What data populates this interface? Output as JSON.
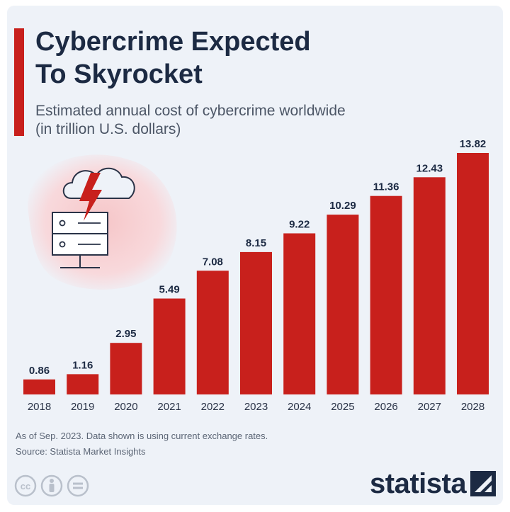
{
  "header": {
    "title_line1": "Cybercrime Expected",
    "title_line2": "To Skyrocket",
    "subtitle_line1": "Estimated annual cost of cybercrime worldwide",
    "subtitle_line2": "(in trillion U.S. dollars)"
  },
  "chart_data": {
    "type": "bar",
    "title": "Cybercrime Expected To Skyrocket",
    "subtitle": "Estimated annual cost of cybercrime worldwide (in trillion U.S. dollars)",
    "categories": [
      "2018",
      "2019",
      "2020",
      "2021",
      "2022",
      "2023",
      "2024",
      "2025",
      "2026",
      "2027",
      "2028"
    ],
    "values": [
      0.86,
      1.16,
      2.95,
      5.49,
      7.08,
      8.15,
      9.22,
      10.29,
      11.36,
      12.43,
      13.82
    ],
    "value_labels": [
      "0.86",
      "1.16",
      "2.95",
      "5.49",
      "7.08",
      "8.15",
      "9.22",
      "10.29",
      "11.36",
      "12.43",
      "13.82"
    ],
    "xlabel": "",
    "ylabel": "",
    "ylim": [
      0,
      13.82
    ],
    "grid": false,
    "bar_color": "#c8201c"
  },
  "footer": {
    "note": "As of Sep. 2023. Data shown is using current exchange rates.",
    "source": "Source: Statista Market Insights",
    "brand": "statista"
  },
  "icons": {
    "illustration": "cloud-server-lightning-icon",
    "licence": [
      "cc-icon",
      "attribution-icon",
      "no-derivatives-icon"
    ]
  },
  "colors": {
    "background": "#eef2f8",
    "accent": "#c8201c",
    "text_dark": "#1c2a43",
    "text_muted": "#5c6676"
  }
}
